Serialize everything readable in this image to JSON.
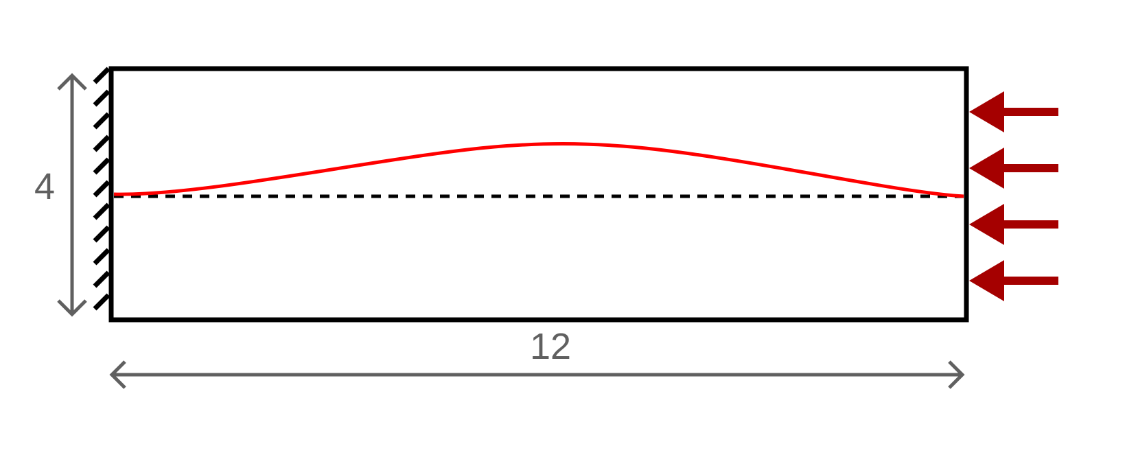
{
  "diagram": {
    "height_label": "4",
    "width_label": "12",
    "colors": {
      "beam_outline": "#000000",
      "deflection_curve": "#ff0000",
      "load_arrows": "#a50000",
      "dimension_lines": "#606060",
      "centerline": "#000000"
    },
    "icons": {
      "fixed_support": "hatched-wall",
      "load": "left-arrow"
    },
    "load_arrow_count": 4
  }
}
